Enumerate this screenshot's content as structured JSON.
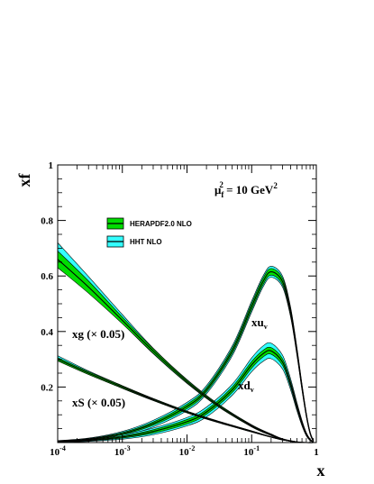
{
  "chart_data": {
    "type": "area",
    "xlabel": "x",
    "ylabel": "xf",
    "x_scale": "log",
    "xlim": [
      0.0001,
      1
    ],
    "ylim": [
      0,
      1
    ],
    "x_ticks": [
      {
        "value": 0.0001,
        "base": "10",
        "exp": "-4"
      },
      {
        "value": 0.001,
        "base": "10",
        "exp": "-3"
      },
      {
        "value": 0.01,
        "base": "10",
        "exp": "-2"
      },
      {
        "value": 0.1,
        "base": "10",
        "exp": "-1"
      },
      {
        "value": 1,
        "base": "1",
        "exp": ""
      }
    ],
    "y_ticks": [
      {
        "value": 0.2,
        "label": "0.2"
      },
      {
        "value": 0.4,
        "label": "0.4"
      },
      {
        "value": 0.6,
        "label": "0.6"
      },
      {
        "value": 0.8,
        "label": "0.8"
      },
      {
        "value": 1.0,
        "label": "1"
      }
    ],
    "scale_annotation": {
      "prefix": "μ",
      "sub": "f",
      "sup": "2",
      "text": " = 10 GeV",
      "sup2": "2"
    },
    "legend": [
      {
        "label": "HERAPDF2.0 NLO",
        "color": "#00dd00"
      },
      {
        "label": "HHT NLO",
        "color": "#33ffff"
      }
    ],
    "curve_labels": [
      {
        "text": "xu",
        "sub": "v"
      },
      {
        "text": "xd",
        "sub": "v"
      },
      {
        "text": "xg (× 0.05)",
        "sub": ""
      },
      {
        "text": "xS (× 0.05)",
        "sub": ""
      }
    ],
    "series": [
      {
        "name": "HERAPDF2.0 NLO xu_v",
        "color": "#00dd00",
        "x": [
          0.0001,
          0.0003,
          0.001,
          0.003,
          0.01,
          0.02,
          0.05,
          0.1,
          0.15,
          0.2,
          0.3,
          0.4,
          0.5,
          0.6,
          0.7,
          0.8,
          0.9
        ],
        "y": [
          0.005,
          0.012,
          0.032,
          0.068,
          0.13,
          0.19,
          0.33,
          0.49,
          0.58,
          0.615,
          0.58,
          0.47,
          0.33,
          0.2,
          0.1,
          0.035,
          0.005
        ],
        "err": [
          0.001,
          0.002,
          0.004,
          0.006,
          0.008,
          0.008,
          0.01,
          0.012,
          0.012,
          0.012,
          0.012,
          0.012,
          0.01,
          0.008,
          0.005,
          0.003,
          0.001
        ]
      },
      {
        "name": "HHT NLO xu_v",
        "color": "#33ffff",
        "x": [
          0.0001,
          0.0003,
          0.001,
          0.003,
          0.01,
          0.02,
          0.05,
          0.1,
          0.15,
          0.2,
          0.3,
          0.4,
          0.5,
          0.6,
          0.7,
          0.8,
          0.9
        ],
        "y": [
          0.005,
          0.012,
          0.032,
          0.068,
          0.13,
          0.19,
          0.33,
          0.49,
          0.58,
          0.615,
          0.58,
          0.47,
          0.33,
          0.2,
          0.1,
          0.035,
          0.005
        ],
        "err": [
          0.002,
          0.004,
          0.008,
          0.012,
          0.015,
          0.015,
          0.018,
          0.02,
          0.02,
          0.02,
          0.02,
          0.018,
          0.015,
          0.012,
          0.008,
          0.005,
          0.002
        ]
      },
      {
        "name": "HERAPDF2.0 NLO xd_v",
        "color": "#00dd00",
        "x": [
          0.0001,
          0.0003,
          0.001,
          0.003,
          0.01,
          0.02,
          0.05,
          0.1,
          0.15,
          0.2,
          0.3,
          0.4,
          0.5,
          0.6,
          0.7,
          0.8,
          0.9
        ],
        "y": [
          0.003,
          0.008,
          0.02,
          0.04,
          0.075,
          0.11,
          0.19,
          0.28,
          0.32,
          0.33,
          0.29,
          0.21,
          0.13,
          0.07,
          0.03,
          0.01,
          0.002
        ],
        "err": [
          0.001,
          0.002,
          0.004,
          0.006,
          0.008,
          0.008,
          0.01,
          0.012,
          0.012,
          0.012,
          0.012,
          0.01,
          0.008,
          0.005,
          0.003,
          0.002,
          0.001
        ]
      },
      {
        "name": "HHT NLO xd_v",
        "color": "#33ffff",
        "x": [
          0.0001,
          0.0003,
          0.001,
          0.003,
          0.01,
          0.02,
          0.05,
          0.1,
          0.15,
          0.2,
          0.3,
          0.4,
          0.5,
          0.6,
          0.7,
          0.8,
          0.9
        ],
        "y": [
          0.003,
          0.008,
          0.02,
          0.04,
          0.075,
          0.11,
          0.19,
          0.28,
          0.32,
          0.33,
          0.29,
          0.21,
          0.13,
          0.07,
          0.03,
          0.01,
          0.002
        ],
        "err": [
          0.002,
          0.004,
          0.008,
          0.012,
          0.015,
          0.018,
          0.02,
          0.025,
          0.028,
          0.028,
          0.025,
          0.02,
          0.015,
          0.01,
          0.006,
          0.003,
          0.001
        ]
      },
      {
        "name": "HERAPDF2.0 NLO xg (× 0.05)",
        "color": "#00dd00",
        "x": [
          0.0001,
          0.0003,
          0.001,
          0.003,
          0.01,
          0.03,
          0.1,
          0.2,
          0.3,
          0.5,
          0.7,
          0.9
        ],
        "y": [
          0.66,
          0.56,
          0.44,
          0.33,
          0.22,
          0.135,
          0.06,
          0.028,
          0.012,
          0.002,
          0.0,
          0.0
        ],
        "err": [
          0.03,
          0.022,
          0.012,
          0.008,
          0.005,
          0.004,
          0.003,
          0.002,
          0.001,
          0.001,
          0.0,
          0.0
        ]
      },
      {
        "name": "HHT NLO xg (× 0.05)",
        "color": "#33ffff",
        "x": [
          0.0001,
          0.0003,
          0.001,
          0.003,
          0.01,
          0.03,
          0.1,
          0.2,
          0.3,
          0.5,
          0.7,
          0.9
        ],
        "y": [
          0.68,
          0.57,
          0.445,
          0.33,
          0.22,
          0.135,
          0.06,
          0.028,
          0.012,
          0.002,
          0.0,
          0.0
        ],
        "err": [
          0.04,
          0.028,
          0.016,
          0.01,
          0.007,
          0.005,
          0.004,
          0.003,
          0.002,
          0.001,
          0.0,
          0.0
        ]
      },
      {
        "name": "HERAPDF2.0 NLO xS (× 0.05)",
        "color": "#00dd00",
        "x": [
          0.0001,
          0.0003,
          0.001,
          0.003,
          0.01,
          0.03,
          0.1,
          0.2,
          0.3,
          0.5,
          0.7,
          0.9
        ],
        "y": [
          0.3,
          0.25,
          0.2,
          0.155,
          0.11,
          0.075,
          0.04,
          0.02,
          0.01,
          0.002,
          0.0,
          0.0
        ],
        "err": [
          0.006,
          0.005,
          0.004,
          0.003,
          0.003,
          0.002,
          0.002,
          0.001,
          0.001,
          0.0,
          0.0,
          0.0
        ]
      },
      {
        "name": "HHT NLO xS (× 0.05)",
        "color": "#33ffff",
        "x": [
          0.0001,
          0.0003,
          0.001,
          0.003,
          0.01,
          0.03,
          0.1,
          0.2,
          0.3,
          0.5,
          0.7,
          0.9
        ],
        "y": [
          0.305,
          0.252,
          0.2,
          0.155,
          0.11,
          0.075,
          0.04,
          0.02,
          0.01,
          0.002,
          0.0,
          0.0
        ],
        "err": [
          0.008,
          0.006,
          0.005,
          0.004,
          0.003,
          0.003,
          0.002,
          0.001,
          0.001,
          0.0,
          0.0,
          0.0
        ]
      }
    ]
  }
}
